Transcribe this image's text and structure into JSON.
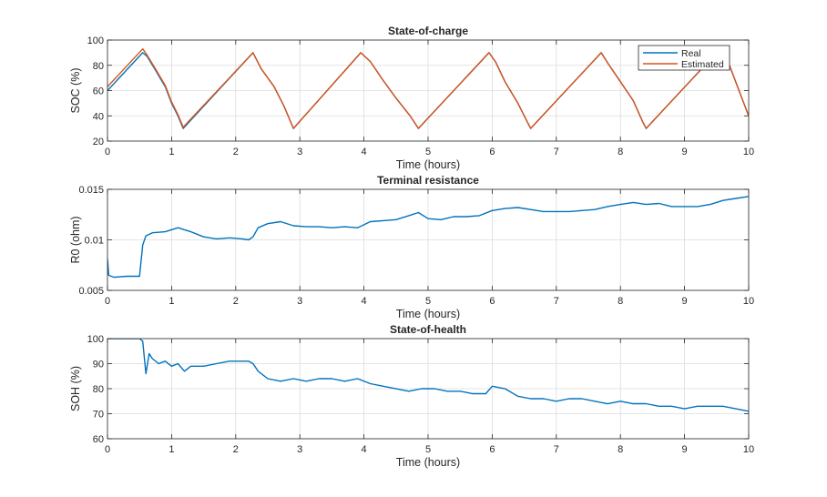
{
  "figure": {
    "colors": {
      "real": "#0072BD",
      "estimated": "#D95319",
      "grid": "#dcdcdc",
      "axis": "#262626"
    }
  },
  "chart_data": [
    {
      "type": "line",
      "title": "State-of-charge",
      "xlabel": "Time (hours)",
      "ylabel": "SOC (%)",
      "xlim": [
        0,
        10
      ],
      "ylim": [
        20,
        100
      ],
      "xticks": [
        "0",
        "1",
        "2",
        "3",
        "4",
        "5",
        "6",
        "7",
        "8",
        "9",
        "10"
      ],
      "yticks": [
        "20",
        "40",
        "60",
        "80",
        "100"
      ],
      "grid": true,
      "legend": {
        "position": "top-right",
        "entries": [
          "Real",
          "Estimated"
        ]
      },
      "series": [
        {
          "name": "Real",
          "color": "#0072BD",
          "x": [
            0,
            0.55,
            0.62,
            0.75,
            0.9,
            1.0,
            1.1,
            1.18,
            2.27,
            2.4,
            2.6,
            2.75,
            2.9,
            3.95,
            4.1,
            4.3,
            4.5,
            4.72,
            4.85,
            5.95,
            6.05,
            6.2,
            6.4,
            6.55,
            6.6,
            7.7,
            7.8,
            8.0,
            8.2,
            8.35,
            8.4,
            9.5,
            9.7,
            9.85,
            10.0
          ],
          "y": [
            60,
            90,
            87,
            76,
            63,
            50,
            40,
            30,
            90,
            77,
            63,
            48,
            30,
            90,
            83,
            68,
            54,
            40,
            30,
            90,
            83,
            67,
            50,
            35,
            30,
            90,
            82,
            67,
            52,
            35,
            30,
            90,
            80,
            60,
            40
          ]
        },
        {
          "name": "Estimated",
          "color": "#D95319",
          "x": [
            0,
            0.55,
            0.62,
            0.75,
            0.9,
            1.0,
            1.1,
            1.18,
            2.27,
            2.4,
            2.6,
            2.75,
            2.9,
            3.95,
            4.1,
            4.3,
            4.5,
            4.72,
            4.85,
            5.95,
            6.05,
            6.2,
            6.4,
            6.55,
            6.6,
            7.7,
            7.8,
            8.0,
            8.2,
            8.35,
            8.4,
            9.5,
            9.7,
            9.85,
            10.0
          ],
          "y": [
            63,
            93,
            88,
            77,
            64,
            51,
            41,
            31,
            90,
            77,
            63,
            48,
            30,
            90,
            83,
            68,
            54,
            40,
            30,
            90,
            83,
            67,
            50,
            35,
            30,
            90,
            82,
            67,
            52,
            35,
            30,
            90,
            80,
            60,
            40
          ]
        }
      ]
    },
    {
      "type": "line",
      "title": "Terminal resistance",
      "xlabel": "Time (hours)",
      "ylabel": "R0 (ohm)",
      "xlim": [
        0,
        10
      ],
      "ylim": [
        0.005,
        0.015
      ],
      "xticks": [
        "0",
        "1",
        "2",
        "3",
        "4",
        "5",
        "6",
        "7",
        "8",
        "9",
        "10"
      ],
      "yticks": [
        "0.005",
        "0.01",
        "0.015"
      ],
      "grid": true,
      "series": [
        {
          "color": "#0072BD",
          "x": [
            0,
            0.02,
            0.1,
            0.3,
            0.5,
            0.55,
            0.6,
            0.7,
            0.9,
            1.1,
            1.2,
            1.3,
            1.5,
            1.7,
            1.9,
            2.1,
            2.2,
            2.27,
            2.35,
            2.5,
            2.7,
            2.9,
            3.1,
            3.3,
            3.5,
            3.7,
            3.9,
            4.1,
            4.3,
            4.5,
            4.7,
            4.85,
            5.0,
            5.2,
            5.4,
            5.6,
            5.8,
            6.0,
            6.2,
            6.4,
            6.6,
            6.8,
            7.0,
            7.2,
            7.4,
            7.6,
            7.8,
            8.0,
            8.2,
            8.4,
            8.6,
            8.8,
            9.0,
            9.2,
            9.4,
            9.6,
            9.8,
            10.0
          ],
          "y": [
            0.0081,
            0.0065,
            0.0063,
            0.0064,
            0.0064,
            0.0095,
            0.0104,
            0.0107,
            0.0108,
            0.0112,
            0.011,
            0.0108,
            0.0103,
            0.0101,
            0.0102,
            0.0101,
            0.01,
            0.0103,
            0.0112,
            0.0116,
            0.0118,
            0.0114,
            0.0113,
            0.0113,
            0.0112,
            0.0113,
            0.0112,
            0.0118,
            0.0119,
            0.012,
            0.0124,
            0.0127,
            0.0121,
            0.012,
            0.0123,
            0.0123,
            0.0124,
            0.0129,
            0.0131,
            0.0132,
            0.013,
            0.0128,
            0.0128,
            0.0128,
            0.0129,
            0.013,
            0.0133,
            0.0135,
            0.0137,
            0.0135,
            0.0136,
            0.0133,
            0.0133,
            0.0133,
            0.0135,
            0.0139,
            0.0141,
            0.0143
          ]
        }
      ]
    },
    {
      "type": "line",
      "title": "State-of-health",
      "xlabel": "Time (hours)",
      "ylabel": "SOH (%)",
      "xlim": [
        0,
        10
      ],
      "ylim": [
        60,
        100
      ],
      "xticks": [
        "0",
        "1",
        "2",
        "3",
        "4",
        "5",
        "6",
        "7",
        "8",
        "9",
        "10"
      ],
      "yticks": [
        "60",
        "70",
        "80",
        "90",
        "100"
      ],
      "grid": true,
      "series": [
        {
          "color": "#0072BD",
          "x": [
            0,
            0.5,
            0.55,
            0.6,
            0.65,
            0.7,
            0.8,
            0.9,
            1.0,
            1.1,
            1.2,
            1.3,
            1.5,
            1.7,
            1.9,
            2.1,
            2.2,
            2.27,
            2.35,
            2.5,
            2.7,
            2.9,
            3.1,
            3.3,
            3.5,
            3.7,
            3.9,
            4.1,
            4.3,
            4.5,
            4.7,
            4.9,
            5.1,
            5.3,
            5.5,
            5.7,
            5.9,
            6.0,
            6.2,
            6.4,
            6.6,
            6.8,
            7.0,
            7.2,
            7.4,
            7.6,
            7.8,
            8.0,
            8.2,
            8.4,
            8.6,
            8.8,
            9.0,
            9.2,
            9.4,
            9.6,
            9.8,
            10.0
          ],
          "y": [
            100,
            100,
            99,
            86,
            94,
            92,
            90,
            91,
            89,
            90,
            87,
            89,
            89,
            90,
            91,
            91,
            91,
            90,
            87,
            84,
            83,
            84,
            83,
            84,
            84,
            83,
            84,
            82,
            81,
            80,
            79,
            80,
            80,
            79,
            79,
            78,
            78,
            81,
            80,
            77,
            76,
            76,
            75,
            76,
            76,
            75,
            74,
            75,
            74,
            74,
            73,
            73,
            72,
            73,
            73,
            73,
            72,
            71
          ]
        }
      ]
    }
  ]
}
